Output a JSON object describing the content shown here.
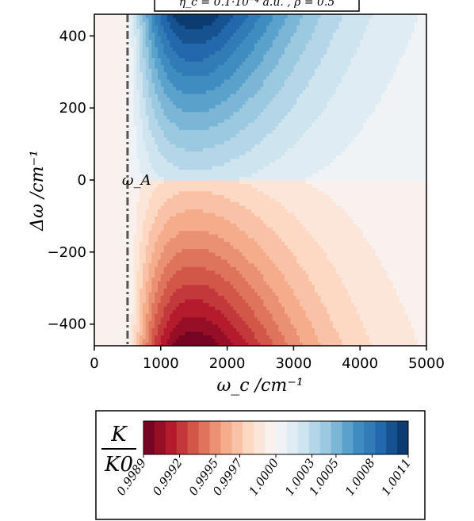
{
  "chart_data": {
    "type": "heatmap",
    "title": "η_c = 0.1·10⁻⁴ a.u. , ρ = 0.5",
    "xlabel": "ω_c /cm⁻¹",
    "ylabel": "Δω /cm⁻¹",
    "xlim": [
      0,
      5000
    ],
    "ylim": [
      -460,
      460
    ],
    "xticks": [
      0,
      1000,
      2000,
      3000,
      4000,
      5000
    ],
    "yticks": [
      -400,
      -200,
      0,
      200,
      400
    ],
    "xtick_labels": [
      "0",
      "1000",
      "2000",
      "3000",
      "4000",
      "5000"
    ],
    "ytick_labels": [
      "−400",
      "−200",
      "0",
      "200",
      "400"
    ],
    "reference_line": {
      "label": "ω_A",
      "x": 500,
      "style": "dash-dot"
    },
    "colorbar": {
      "label_numerator": "K",
      "label_denominator": "K0",
      "range": [
        0.9989,
        1.0011
      ],
      "tick_values": [
        0.9989,
        0.9992,
        0.9995,
        0.9997,
        1.0,
        1.0003,
        1.0005,
        1.0008,
        1.0011
      ],
      "tick_labels": [
        "0.9989",
        "0.9992",
        "0.9995",
        "0.9997",
        "1.0000",
        "1.0003",
        "1.0005",
        "1.0008",
        "1.0011"
      ],
      "colormap": "RdBu",
      "levels": 24
    },
    "field_features": {
      "maximum": {
        "value": 1.0011,
        "wc": 1500,
        "dw": 460
      },
      "minimum": {
        "value": 0.9989,
        "wc": 1500,
        "dw": -460
      },
      "neutral_line_dw": 0
    },
    "grid": false,
    "colors": {
      "low": "#67001f",
      "mid": "#f7f7f7",
      "high": "#053061",
      "reference_line": "#555555"
    }
  }
}
